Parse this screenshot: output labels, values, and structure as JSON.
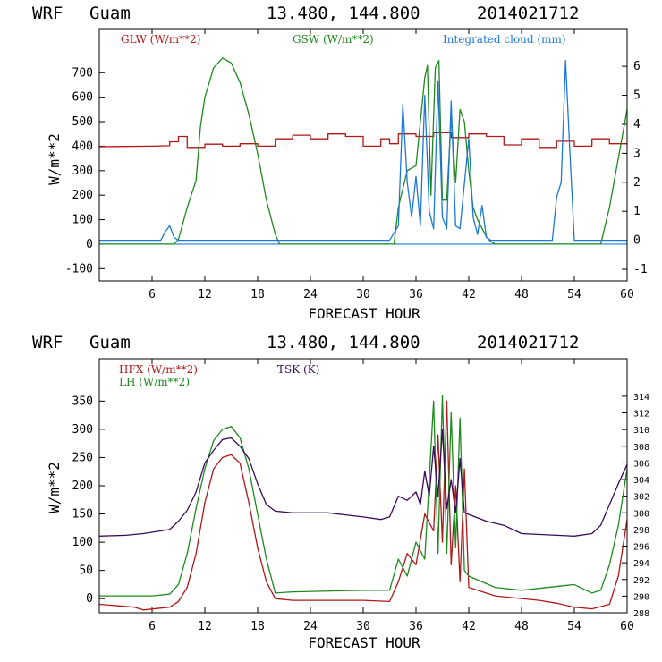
{
  "colors": {
    "glw": "#b01818",
    "gsw": "#1e8a1e",
    "cloud": "#1e78d8",
    "hfx": "#b01818",
    "lh": "#1e8a1e",
    "tsk": "#3a0a5a",
    "axis": "#000000"
  },
  "chart_data": [
    {
      "type": "line",
      "header": {
        "model": "WRF",
        "station": "Guam",
        "coords": "13.480, 144.800",
        "init": "2014021712"
      },
      "xlabel": "FORECAST HOUR",
      "ylabel": "W/m**2",
      "xlim": [
        0,
        60
      ],
      "xticks": [
        "6",
        "12",
        "18",
        "24",
        "30",
        "36",
        "42",
        "48",
        "54",
        "60"
      ],
      "ylim": [
        -150,
        880
      ],
      "yticks": [
        "-100",
        "0",
        "100",
        "200",
        "300",
        "400",
        "500",
        "600",
        "700"
      ],
      "y2lim": [
        -1.4,
        7.3
      ],
      "y2ticks": [
        "-1",
        "0",
        "1",
        "2",
        "3",
        "4",
        "5",
        "6"
      ],
      "series": [
        {
          "name": "GLW (W/m**2)",
          "axis": "left",
          "x": [
            0,
            6,
            8,
            8,
            9,
            9,
            10,
            10,
            12,
            12,
            14,
            14,
            16,
            16,
            18,
            18,
            20,
            20,
            22,
            22,
            24,
            24,
            26,
            26,
            28,
            28,
            30,
            30,
            32,
            32,
            33,
            33,
            34,
            34,
            36,
            36,
            38,
            38,
            40,
            40,
            42,
            42,
            44,
            44,
            46,
            46,
            48,
            48,
            50,
            50,
            52,
            52,
            54,
            54,
            56,
            56,
            58,
            58,
            60
          ],
          "y": [
            398,
            400,
            402,
            418,
            418,
            440,
            440,
            395,
            395,
            408,
            408,
            400,
            400,
            410,
            410,
            400,
            400,
            430,
            430,
            445,
            445,
            430,
            430,
            450,
            450,
            440,
            440,
            400,
            400,
            430,
            430,
            410,
            410,
            450,
            450,
            440,
            440,
            455,
            455,
            435,
            435,
            450,
            450,
            440,
            440,
            405,
            405,
            430,
            430,
            395,
            395,
            420,
            420,
            400,
            400,
            430,
            430,
            410,
            410
          ]
        },
        {
          "name": "GSW (W/m**2)",
          "axis": "left",
          "x": [
            0,
            8.5,
            9,
            10,
            11,
            11.5,
            12,
            13,
            14,
            15,
            16,
            17,
            18,
            19,
            20,
            20.5,
            33.5,
            34,
            35,
            36,
            37,
            37.3,
            37.7,
            38.2,
            38.6,
            39,
            39.5,
            40,
            40.5,
            41,
            41.5,
            42,
            42.5,
            43,
            44,
            44.5,
            45,
            57,
            58,
            60
          ],
          "y": [
            0,
            0,
            20,
            150,
            260,
            480,
            600,
            720,
            760,
            740,
            660,
            530,
            370,
            180,
            40,
            0,
            0,
            150,
            300,
            320,
            680,
            730,
            200,
            720,
            750,
            180,
            180,
            520,
            250,
            550,
            500,
            300,
            150,
            100,
            30,
            10,
            0,
            0,
            150,
            550
          ]
        },
        {
          "name": "Integrated cloud (mm)",
          "axis": "right",
          "x": [
            0,
            7,
            7.5,
            8,
            8.5,
            9,
            33,
            34,
            34.5,
            35,
            35.5,
            36,
            36.5,
            37,
            37.5,
            38,
            38.5,
            39,
            39.5,
            40,
            40.5,
            41,
            42,
            42.5,
            43,
            43.5,
            44,
            44.5,
            45,
            51.5,
            52,
            52.5,
            53,
            53.5,
            54,
            60
          ],
          "y": [
            0,
            0,
            0.3,
            0.5,
            0.1,
            0,
            0,
            0.5,
            4.7,
            2,
            0.8,
            2.2,
            0.5,
            5,
            1,
            0.4,
            5.5,
            0.8,
            0.4,
            4.8,
            0.5,
            0.4,
            3.5,
            0.8,
            0.2,
            1.2,
            0.1,
            0,
            0,
            0,
            1.5,
            2,
            6.2,
            3,
            0,
            0
          ]
        }
      ]
    },
    {
      "type": "line",
      "header": {
        "model": "WRF",
        "station": "Guam",
        "coords": "13.480, 144.800",
        "init": "2014021712"
      },
      "xlabel": "FORECAST HOUR",
      "ylabel": "W/m**2",
      "xlim": [
        0,
        60
      ],
      "xticks": [
        "6",
        "12",
        "18",
        "24",
        "30",
        "36",
        "42",
        "48",
        "54",
        "60"
      ],
      "ylim": [
        -25,
        425
      ],
      "yticks": [
        "0",
        "50",
        "100",
        "150",
        "200",
        "250",
        "300",
        "350"
      ],
      "y2lim": [
        288,
        318.5
      ],
      "y2ticks": [
        "288",
        "290",
        "292",
        "294",
        "296",
        "298",
        "300",
        "302",
        "304",
        "306",
        "308",
        "310",
        "312",
        "314"
      ],
      "series": [
        {
          "name": "HFX (W/m**2)",
          "axis": "left",
          "x": [
            0,
            4,
            5,
            8,
            9,
            10,
            11,
            12,
            13,
            14,
            15,
            16,
            17,
            18,
            19,
            20,
            22,
            30,
            33,
            34,
            35,
            36,
            37,
            38,
            38.5,
            39,
            39.5,
            40,
            40.5,
            41,
            41.5,
            42,
            45,
            50,
            52,
            54,
            56,
            58,
            59,
            60
          ],
          "y": [
            -10,
            -15,
            -20,
            -15,
            -5,
            20,
            80,
            170,
            230,
            250,
            255,
            240,
            170,
            90,
            30,
            0,
            -3,
            -3,
            -5,
            30,
            80,
            60,
            150,
            120,
            290,
            100,
            350,
            60,
            200,
            30,
            230,
            20,
            5,
            -3,
            -8,
            -15,
            -18,
            -10,
            40,
            140
          ]
        },
        {
          "name": "LH (W/m**2)",
          "axis": "left",
          "x": [
            0,
            6,
            8,
            9,
            10,
            11,
            12,
            13,
            14,
            15,
            16,
            17,
            18,
            19,
            20,
            22,
            30,
            33,
            34,
            35,
            36,
            37,
            38,
            38.5,
            39,
            39.5,
            40,
            40.5,
            41,
            41.5,
            42,
            45,
            48,
            54,
            56,
            57,
            58,
            59,
            60
          ],
          "y": [
            5,
            5,
            8,
            25,
            80,
            160,
            230,
            280,
            300,
            305,
            285,
            230,
            150,
            70,
            10,
            12,
            15,
            15,
            70,
            40,
            100,
            70,
            350,
            80,
            360,
            80,
            330,
            90,
            320,
            50,
            40,
            20,
            15,
            25,
            10,
            15,
            60,
            130,
            230
          ]
        },
        {
          "name": "TSK (K)",
          "axis": "right",
          "x": [
            0,
            3,
            5,
            8,
            9,
            10,
            11,
            12,
            13,
            14,
            15,
            16,
            17,
            18,
            19,
            20,
            22,
            26,
            30,
            32,
            33,
            34,
            35,
            36,
            36.5,
            37,
            37.5,
            38,
            38.5,
            39,
            39.5,
            40,
            40.5,
            41,
            41.5,
            42,
            44,
            46,
            48,
            52,
            54,
            56,
            57,
            58,
            59,
            60
          ],
          "y": [
            297.2,
            297.3,
            297.5,
            298,
            299,
            300.3,
            302.5,
            306,
            307.5,
            308.8,
            309,
            308,
            306.5,
            303.5,
            301,
            300.2,
            300,
            300,
            299.5,
            299.2,
            299.5,
            302,
            301.5,
            302.5,
            301,
            305,
            302,
            308,
            302,
            310,
            300.5,
            304,
            300,
            306.5,
            300,
            299.8,
            299,
            298.5,
            297.5,
            297.3,
            297.2,
            297.5,
            298.5,
            301,
            303.5,
            305.8
          ]
        }
      ]
    }
  ]
}
